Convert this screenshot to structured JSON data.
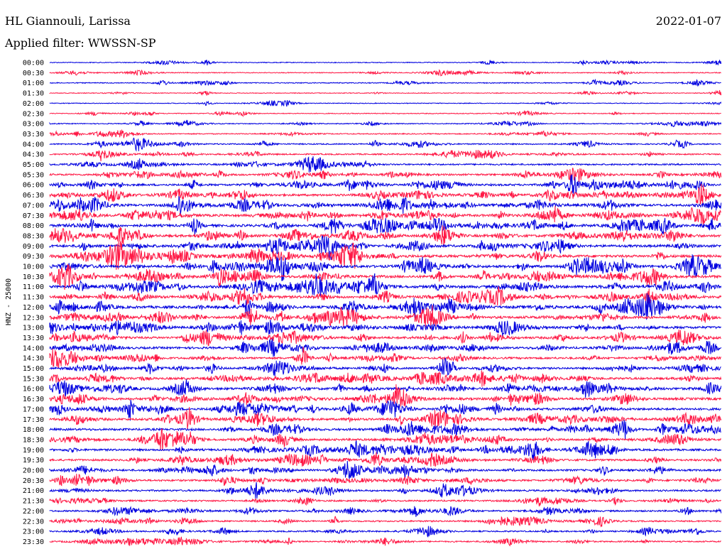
{
  "header": {
    "station": "HL Giannouli, Larissa",
    "date": "2022-01-07",
    "filter": "Applied filter: WWSSN-SP"
  },
  "chart_data": {
    "type": "line",
    "ylabel": "HNZ - 25000",
    "colors": [
      "#0000e0",
      "#ff1744"
    ],
    "traces": [
      {
        "label": "00:00",
        "color": "#0000e0",
        "activity": 0.15
      },
      {
        "label": "00:30",
        "color": "#ff1744",
        "activity": 0.15
      },
      {
        "label": "01:00",
        "color": "#0000e0",
        "activity": 0.2
      },
      {
        "label": "01:30",
        "color": "#ff1744",
        "activity": 0.1
      },
      {
        "label": "02:00",
        "color": "#0000e0",
        "activity": 0.1
      },
      {
        "label": "02:30",
        "color": "#ff1744",
        "activity": 0.15
      },
      {
        "label": "03:00",
        "color": "#0000e0",
        "activity": 0.2
      },
      {
        "label": "03:30",
        "color": "#ff1744",
        "activity": 0.25
      },
      {
        "label": "04:00",
        "color": "#0000e0",
        "activity": 0.35
      },
      {
        "label": "04:30",
        "color": "#ff1744",
        "activity": 0.4
      },
      {
        "label": "05:00",
        "color": "#0000e0",
        "activity": 0.5
      },
      {
        "label": "05:30",
        "color": "#ff1744",
        "activity": 0.6
      },
      {
        "label": "06:00",
        "color": "#0000e0",
        "activity": 0.7
      },
      {
        "label": "06:30",
        "color": "#ff1744",
        "activity": 0.75
      },
      {
        "label": "07:00",
        "color": "#0000e0",
        "activity": 0.85
      },
      {
        "label": "07:30",
        "color": "#ff1744",
        "activity": 0.85
      },
      {
        "label": "08:00",
        "color": "#0000e0",
        "activity": 0.9
      },
      {
        "label": "08:30",
        "color": "#ff1744",
        "activity": 0.9
      },
      {
        "label": "09:00",
        "color": "#0000e0",
        "activity": 0.9
      },
      {
        "label": "09:30",
        "color": "#ff1744",
        "activity": 0.95
      },
      {
        "label": "10:00",
        "color": "#0000e0",
        "activity": 0.95
      },
      {
        "label": "10:30",
        "color": "#ff1744",
        "activity": 0.95
      },
      {
        "label": "11:00",
        "color": "#0000e0",
        "activity": 1.0
      },
      {
        "label": "11:30",
        "color": "#ff1744",
        "activity": 0.95
      },
      {
        "label": "12:00",
        "color": "#0000e0",
        "activity": 0.95
      },
      {
        "label": "12:30",
        "color": "#ff1744",
        "activity": 0.9
      },
      {
        "label": "13:00",
        "color": "#0000e0",
        "activity": 0.9
      },
      {
        "label": "13:30",
        "color": "#ff1744",
        "activity": 0.8
      },
      {
        "label": "14:00",
        "color": "#0000e0",
        "activity": 0.75
      },
      {
        "label": "14:30",
        "color": "#ff1744",
        "activity": 0.65
      },
      {
        "label": "15:00",
        "color": "#0000e0",
        "activity": 0.65
      },
      {
        "label": "15:30",
        "color": "#ff1744",
        "activity": 0.75
      },
      {
        "label": "16:00",
        "color": "#0000e0",
        "activity": 0.85
      },
      {
        "label": "16:30",
        "color": "#ff1744",
        "activity": 0.85
      },
      {
        "label": "17:00",
        "color": "#0000e0",
        "activity": 0.8
      },
      {
        "label": "17:30",
        "color": "#ff1744",
        "activity": 0.75
      },
      {
        "label": "18:00",
        "color": "#0000e0",
        "activity": 0.75
      },
      {
        "label": "18:30",
        "color": "#ff1744",
        "activity": 0.75
      },
      {
        "label": "19:00",
        "color": "#0000e0",
        "activity": 0.7
      },
      {
        "label": "19:30",
        "color": "#ff1744",
        "activity": 0.65
      },
      {
        "label": "20:00",
        "color": "#0000e0",
        "activity": 0.65
      },
      {
        "label": "20:30",
        "color": "#ff1744",
        "activity": 0.6
      },
      {
        "label": "21:00",
        "color": "#0000e0",
        "activity": 0.55
      },
      {
        "label": "21:30",
        "color": "#ff1744",
        "activity": 0.5
      },
      {
        "label": "22:00",
        "color": "#0000e0",
        "activity": 0.5
      },
      {
        "label": "22:30",
        "color": "#ff1744",
        "activity": 0.45
      },
      {
        "label": "23:00",
        "color": "#0000e0",
        "activity": 0.4
      },
      {
        "label": "23:30",
        "color": "#ff1744",
        "activity": 0.4
      }
    ]
  }
}
